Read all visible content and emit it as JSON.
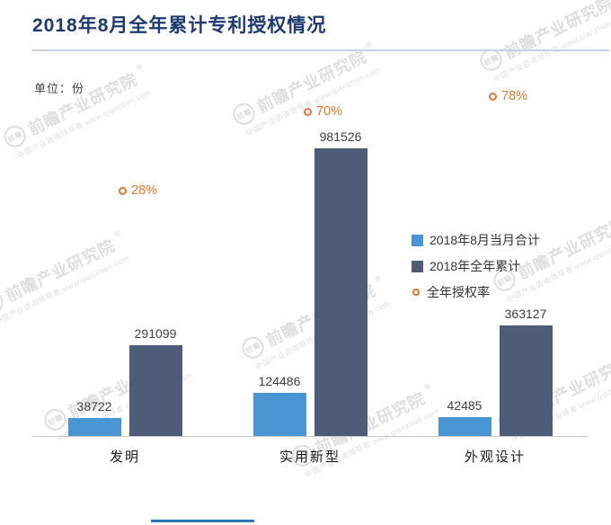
{
  "watermark": {
    "logo": "前瞻",
    "name": "前瞻产业研究院",
    "reg": "®",
    "tagline": "中国产业咨询领导者 www.qianzhan.com"
  },
  "chart_data": {
    "type": "bar",
    "title": "2018年8月全年累计专利授权情况",
    "unit_label": "单位：份",
    "categories": [
      "发明",
      "实用新型",
      "外观设计"
    ],
    "series": [
      {
        "name": "2018年8月当月合计",
        "type": "bar",
        "marker": "square",
        "color": "#4a96d2",
        "values": [
          38722,
          124486,
          42485
        ]
      },
      {
        "name": "2018年全年累计",
        "type": "bar",
        "marker": "square",
        "color": "#4e5c79",
        "values": [
          291099,
          981526,
          363127
        ]
      },
      {
        "name": "全年授权率",
        "type": "point",
        "marker": "ring",
        "color": "#e8762c",
        "unit": "%",
        "values": [
          28,
          70,
          78
        ]
      }
    ],
    "legend_position": "middle-right",
    "grid": false,
    "ylim": [
      0,
      1000000
    ]
  }
}
